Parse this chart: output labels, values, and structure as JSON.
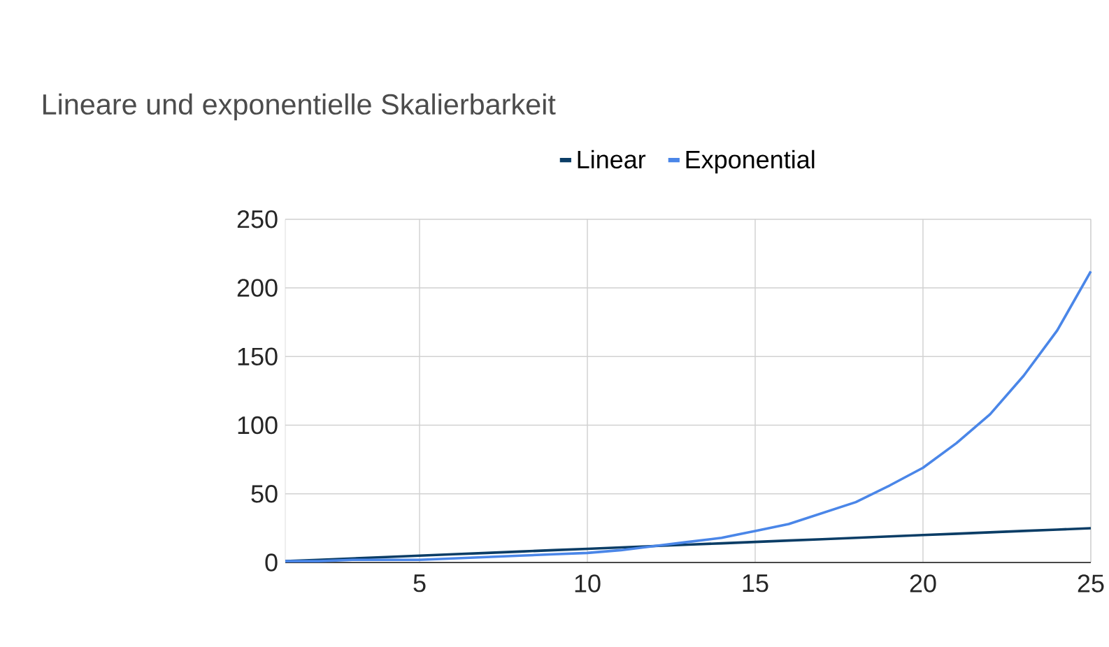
{
  "chart_data": {
    "type": "line",
    "title": "Lineare und exponentielle Skalierbarkeit",
    "x": [
      1,
      2,
      3,
      4,
      5,
      6,
      7,
      8,
      9,
      10,
      11,
      12,
      13,
      14,
      15,
      16,
      17,
      18,
      19,
      20,
      21,
      22,
      23,
      24,
      25
    ],
    "series": [
      {
        "name": "Linear",
        "color": "#0b3d66",
        "values": [
          1,
          2,
          3,
          4,
          5,
          6,
          7,
          8,
          9,
          10,
          11,
          12,
          13,
          14,
          15,
          16,
          17,
          18,
          19,
          20,
          21,
          22,
          23,
          24,
          25
        ]
      },
      {
        "name": "Exponential",
        "color": "#4a86e8",
        "values": [
          1,
          1,
          2,
          2,
          2,
          3,
          4,
          5,
          6,
          7,
          9,
          12,
          15,
          18,
          23,
          28,
          36,
          44,
          56,
          69,
          87,
          108,
          136,
          169,
          212
        ]
      }
    ],
    "xlim": [
      1,
      25
    ],
    "xticks": [
      5,
      10,
      15,
      20,
      25
    ],
    "ylim": [
      0,
      250
    ],
    "yticks": [
      0,
      50,
      100,
      150,
      200,
      250
    ],
    "grid": true,
    "legend": "top",
    "marker": "none",
    "line_style": "solid"
  }
}
